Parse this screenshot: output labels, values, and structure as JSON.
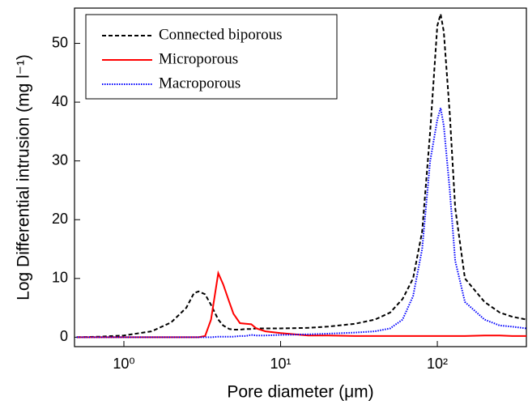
{
  "chart_data": {
    "type": "line",
    "xlabel": "Pore diameter (μm)",
    "ylabel": "Log Differential intrusion (mg l⁻¹)",
    "x": [
      0.5,
      0.7,
      1,
      1.5,
      2,
      2.5,
      2.8,
      3,
      3.3,
      3.6,
      4,
      4.3,
      4.7,
      5,
      5.5,
      6,
      6.5,
      7,
      8,
      10,
      15,
      20,
      30,
      40,
      50,
      60,
      70,
      80,
      90,
      100,
      105,
      110,
      120,
      130,
      150,
      200,
      250,
      300,
      370
    ],
    "series": [
      {
        "name": "Connected biporous",
        "color": "#000000",
        "dash": "5,3",
        "values": [
          0,
          0.1,
          0.3,
          1,
          2.5,
          5,
          7.5,
          7.8,
          7.3,
          5.5,
          3,
          2,
          1.4,
          1.3,
          1.3,
          1.4,
          1.4,
          1.5,
          1.5,
          1.5,
          1.6,
          1.8,
          2.3,
          3,
          4.2,
          6.5,
          10,
          18,
          35,
          53,
          55,
          52,
          38,
          22,
          10,
          6,
          4.2,
          3.5,
          3
        ]
      },
      {
        "name": "Microporous",
        "color": "#ff0000",
        "dash": "none",
        "values": [
          0,
          0,
          0,
          0,
          0,
          0,
          0,
          0,
          0.2,
          3,
          10.9,
          9,
          6,
          4,
          2.4,
          2.3,
          2.2,
          1.5,
          1,
          0.7,
          0.3,
          0.3,
          0.2,
          0.2,
          0.2,
          0.2,
          0.2,
          0.2,
          0.2,
          0.2,
          0.2,
          0.2,
          0.2,
          0.2,
          0.2,
          0.3,
          0.3,
          0.2,
          0.2
        ]
      },
      {
        "name": "Macroporous",
        "color": "#0000ff",
        "dash": "1.5,1.5",
        "values": [
          0,
          0,
          0,
          0,
          0,
          0,
          0,
          0,
          0,
          0,
          0.1,
          0.1,
          0.1,
          0.1,
          0.2,
          0.2,
          0.4,
          0.3,
          0.3,
          0.4,
          0.5,
          0.6,
          0.8,
          1,
          1.5,
          3,
          7,
          15,
          30,
          37,
          39,
          36,
          25,
          13,
          6,
          3,
          2,
          1.8,
          1.5
        ]
      }
    ],
    "xscale": "log",
    "xlim": [
      0.484,
      370
    ],
    "xticks": [
      {
        "value": 1,
        "label": "10⁰"
      },
      {
        "value": 10,
        "label": "10¹"
      },
      {
        "value": 100,
        "label": "10²"
      }
    ],
    "ylim": [
      -1.6,
      56
    ],
    "yticks": [
      0,
      10,
      20,
      30,
      40,
      50
    ],
    "legend": "upper left"
  }
}
